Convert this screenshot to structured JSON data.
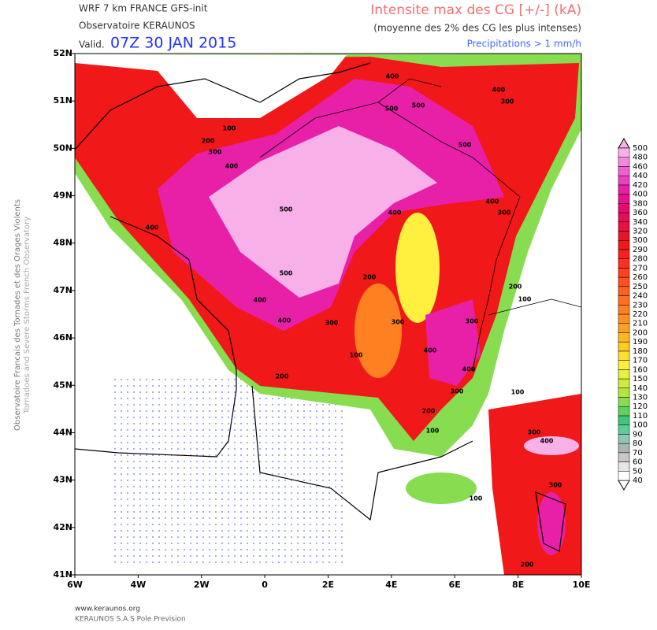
{
  "header": {
    "model": "WRF 7 km FRANCE  GFS-init",
    "org": "Observatoire KERAUNOS",
    "valid_label": "Valid.",
    "valid_time": "07Z 30 JAN 2015",
    "title": "Intensite max des CG [+/-] (kA)",
    "subtitle": "(moyenne des 2% des CG les plus intenses)",
    "note": "Precipitations > 1 mm/h"
  },
  "side_text": {
    "line1": "Observatoire Francais des Tornades et des Orages Violents",
    "line2": "Tornadoes and Severe Storms French Observatory"
  },
  "axes": {
    "lon": [
      {
        "value": -6,
        "label": "6W"
      },
      {
        "value": -4,
        "label": "4W"
      },
      {
        "value": -2,
        "label": "2W"
      },
      {
        "value": 0,
        "label": "0"
      },
      {
        "value": 2,
        "label": "2E"
      },
      {
        "value": 4,
        "label": "4E"
      },
      {
        "value": 6,
        "label": "6E"
      },
      {
        "value": 8,
        "label": "8E"
      },
      {
        "value": 10,
        "label": "10E"
      }
    ],
    "lat": [
      {
        "value": 52,
        "label": "52N"
      },
      {
        "value": 51,
        "label": "51N"
      },
      {
        "value": 50,
        "label": "50N"
      },
      {
        "value": 49,
        "label": "49N"
      },
      {
        "value": 48,
        "label": "48N"
      },
      {
        "value": 47,
        "label": "47N"
      },
      {
        "value": 46,
        "label": "46N"
      },
      {
        "value": 45,
        "label": "45N"
      },
      {
        "value": 44,
        "label": "44N"
      },
      {
        "value": 43,
        "label": "43N"
      },
      {
        "value": 42,
        "label": "42N"
      },
      {
        "value": 41,
        "label": "41N"
      }
    ],
    "lonlim": [
      -6,
      10
    ],
    "latlim": [
      41,
      52
    ]
  },
  "colorbar": {
    "levels": [
      40,
      50,
      60,
      70,
      80,
      90,
      100,
      110,
      120,
      130,
      140,
      150,
      160,
      170,
      180,
      190,
      200,
      210,
      220,
      230,
      240,
      250,
      260,
      270,
      280,
      290,
      300,
      320,
      340,
      360,
      380,
      400,
      420,
      440,
      460,
      480,
      500
    ],
    "colors": [
      "#ffffff",
      "#e6e6e6",
      "#c8c8c8",
      "#aab4b0",
      "#8ec8b0",
      "#5ccc9a",
      "#3ec878",
      "#60d060",
      "#88dc50",
      "#b0e640",
      "#d0ec40",
      "#e8f040",
      "#fff040",
      "#ffe030",
      "#ffcc20",
      "#ffb820",
      "#ffa020",
      "#ff9020",
      "#ff8020",
      "#ff7020",
      "#ff6020",
      "#ff5020",
      "#ff4020",
      "#ff3020",
      "#f82020",
      "#f01818",
      "#e81428",
      "#e81040",
      "#e80c58",
      "#e80870",
      "#e8108c",
      "#e820a8",
      "#ec40c0",
      "#f060d0",
      "#f488dc",
      "#f8b0e8"
    ]
  },
  "contour_labels": [
    400,
    400,
    300,
    500,
    500,
    100,
    200,
    300,
    400,
    500,
    500,
    400,
    300,
    400,
    400,
    500,
    200,
    200,
    400,
    100,
    400,
    300,
    300,
    300,
    100,
    400,
    400,
    200,
    300,
    100,
    200,
    100,
    300,
    400,
    300,
    100,
    200
  ],
  "footer": {
    "url": "www.keraunos.org",
    "company": "KERAUNOS S.A.S Pole Prevision"
  }
}
